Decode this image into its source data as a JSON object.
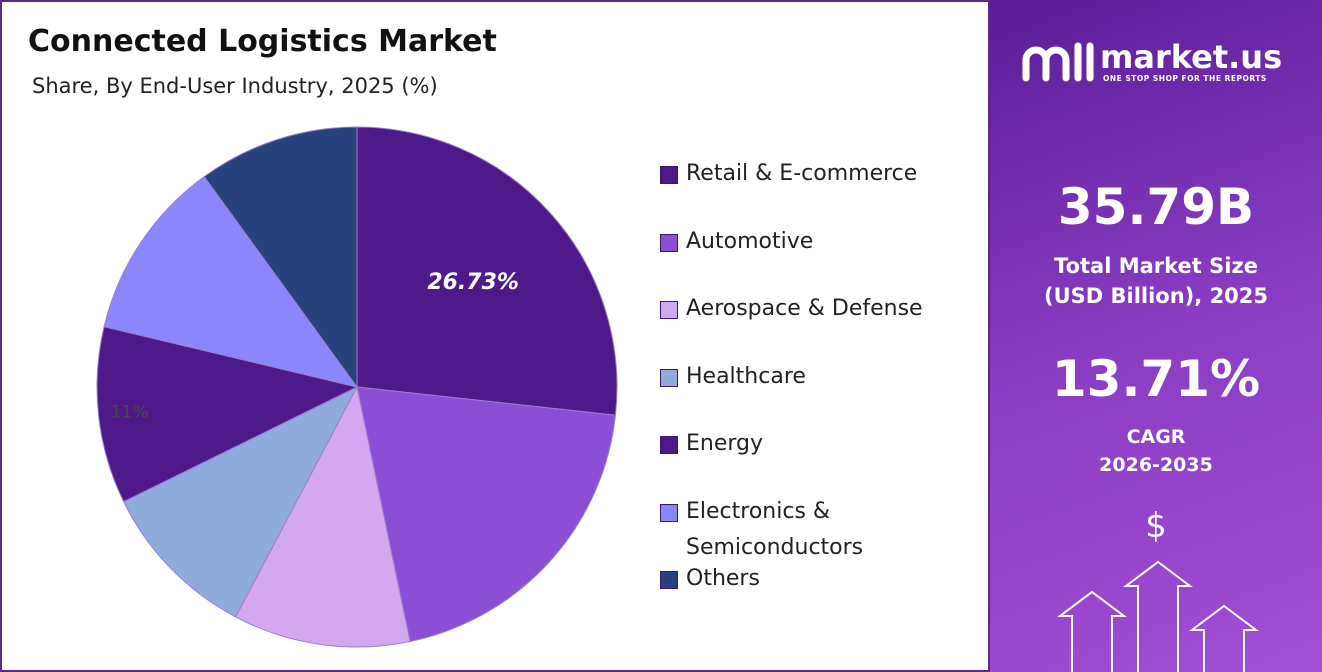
{
  "chart_data": {
    "type": "pie",
    "title": "Connected Logistics Market",
    "subtitle": "Share, By End-User Industry, 2025 (%)",
    "categories": [
      "Retail & E-commerce",
      "Automotive",
      "Aerospace & Defense",
      "Healthcare",
      "Energy",
      "Electronics & Semiconductors",
      "Others"
    ],
    "values": [
      26.73,
      20,
      11,
      10,
      11,
      11.27,
      10
    ],
    "value_labels": [
      "26.73%",
      null,
      null,
      null,
      "11%",
      null,
      null
    ],
    "colors": [
      "#4e1a8a",
      "#8a4fd4",
      "#d4a8f0",
      "#8faadc",
      "#4e1a8a",
      "#8b86fb",
      "#27427c"
    ]
  },
  "sidebar": {
    "brand": "market.us",
    "tagline": "ONE STOP SHOP FOR THE REPORTS",
    "market_size": "35.79B",
    "market_size_label": [
      "Total Market Size",
      "(USD Billion), 2025"
    ],
    "cagr": "13.71%",
    "cagr_label": [
      "CAGR",
      "2026-2035"
    ],
    "symbol": "$"
  }
}
